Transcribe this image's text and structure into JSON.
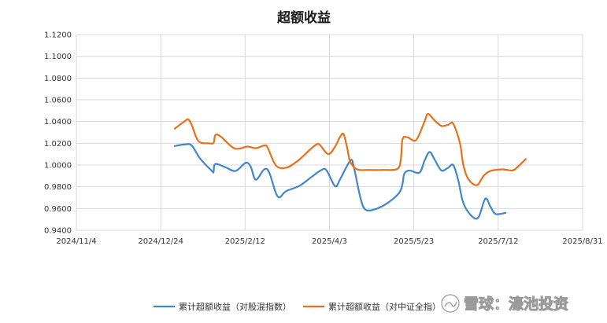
{
  "chart_data": {
    "type": "line",
    "title": "超额收益",
    "xlabel": "",
    "ylabel": "",
    "ylim": [
      0.94,
      1.12
    ],
    "y_ticks": [
      "0.9400",
      "0.9600",
      "0.9800",
      "1.0000",
      "1.0200",
      "1.0400",
      "1.0600",
      "1.0800",
      "1.1000",
      "1.1200"
    ],
    "x_ticks": [
      "2024/11/4",
      "2024/12/24",
      "2025/2/12",
      "2025/4/3",
      "2025/5/23",
      "2025/7/12",
      "2025/8/31"
    ],
    "x_tick_days": [
      0,
      50,
      100,
      150,
      200,
      250,
      300
    ],
    "grid": true,
    "legend_position": "bottom",
    "series": [
      {
        "name": "累计超额收益（对股混指数）",
        "color": "#3f87c8",
        "points": [
          [
            0,
            1.0175
          ],
          [
            6,
            1.019
          ],
          [
            10,
            1.018
          ],
          [
            15,
            1.006
          ],
          [
            22,
            0.9945
          ],
          [
            23,
            0.994
          ],
          [
            24,
            1.001
          ],
          [
            30,
            0.998
          ],
          [
            36,
            0.9945
          ],
          [
            42,
            1.002
          ],
          [
            45,
            0.9985
          ],
          [
            48,
            0.9865
          ],
          [
            53,
            0.996
          ],
          [
            56,
            0.993
          ],
          [
            61,
            0.971
          ],
          [
            66,
            0.976
          ],
          [
            74,
            0.981
          ],
          [
            81,
            0.989
          ],
          [
            87,
            0.9955
          ],
          [
            90,
            0.995
          ],
          [
            95,
            0.9805
          ],
          [
            98,
            0.987
          ],
          [
            104,
            1.004
          ],
          [
            106,
            0.999
          ],
          [
            110,
            0.97
          ],
          [
            113,
            0.959
          ],
          [
            119,
            0.9595
          ],
          [
            126,
            0.965
          ],
          [
            133,
            0.9745
          ],
          [
            135,
            0.983
          ],
          [
            136,
            0.992
          ],
          [
            139,
            0.995
          ],
          [
            145,
            0.993
          ],
          [
            148,
            1.004
          ],
          [
            151,
            1.012
          ],
          [
            154,
            1.005
          ],
          [
            158,
            0.995
          ],
          [
            162,
            0.9975
          ],
          [
            165,
            1.0
          ],
          [
            168,
            0.986
          ],
          [
            171,
            0.965
          ],
          [
            176,
            0.953
          ],
          [
            180,
            0.952
          ],
          [
            184,
            0.969
          ],
          [
            187,
            0.962
          ],
          [
            190,
            0.955
          ],
          [
            196,
            0.956
          ]
        ]
      },
      {
        "name": "累计超额收益（对中证全指）",
        "color": "#e8701a",
        "points": [
          [
            0,
            1.0335
          ],
          [
            6,
            1.0405
          ],
          [
            8,
            1.042
          ],
          [
            10,
            1.037
          ],
          [
            14,
            1.022
          ],
          [
            20,
            1.02
          ],
          [
            23,
            1.0205
          ],
          [
            24,
            1.0275
          ],
          [
            27,
            1.0265
          ],
          [
            34,
            1.0165
          ],
          [
            38,
            1.015
          ],
          [
            43,
            1.017
          ],
          [
            48,
            1.0155
          ],
          [
            53,
            1.018
          ],
          [
            55,
            1.016
          ],
          [
            60,
            0.9995
          ],
          [
            66,
            0.9975
          ],
          [
            73,
            1.004
          ],
          [
            80,
            1.014
          ],
          [
            84,
            1.019
          ],
          [
            86,
            1.0185
          ],
          [
            91,
            1.01
          ],
          [
            95,
            1.017
          ],
          [
            98,
            1.026
          ],
          [
            100,
            1.0285
          ],
          [
            102,
            1.017
          ],
          [
            104,
            1.003
          ],
          [
            108,
            0.996
          ],
          [
            115,
            0.9955
          ],
          [
            124,
            0.9955
          ],
          [
            132,
            0.9965
          ],
          [
            134,
            1.006
          ],
          [
            135,
            1.024
          ],
          [
            138,
            1.0255
          ],
          [
            143,
            1.023
          ],
          [
            148,
            1.04
          ],
          [
            150,
            1.047
          ],
          [
            154,
            1.041
          ],
          [
            158,
            1.036
          ],
          [
            162,
            1.037
          ],
          [
            165,
            1.038
          ],
          [
            169,
            1.02
          ],
          [
            171,
            1.0
          ],
          [
            174,
            0.987
          ],
          [
            179,
            0.9815
          ],
          [
            183,
            0.99
          ],
          [
            187,
            0.9945
          ],
          [
            194,
            0.996
          ],
          [
            200,
            0.995
          ],
          [
            203,
            0.998
          ],
          [
            208,
            1.0055
          ]
        ]
      }
    ]
  },
  "watermark": {
    "brand": "雪球：濠池投资"
  }
}
